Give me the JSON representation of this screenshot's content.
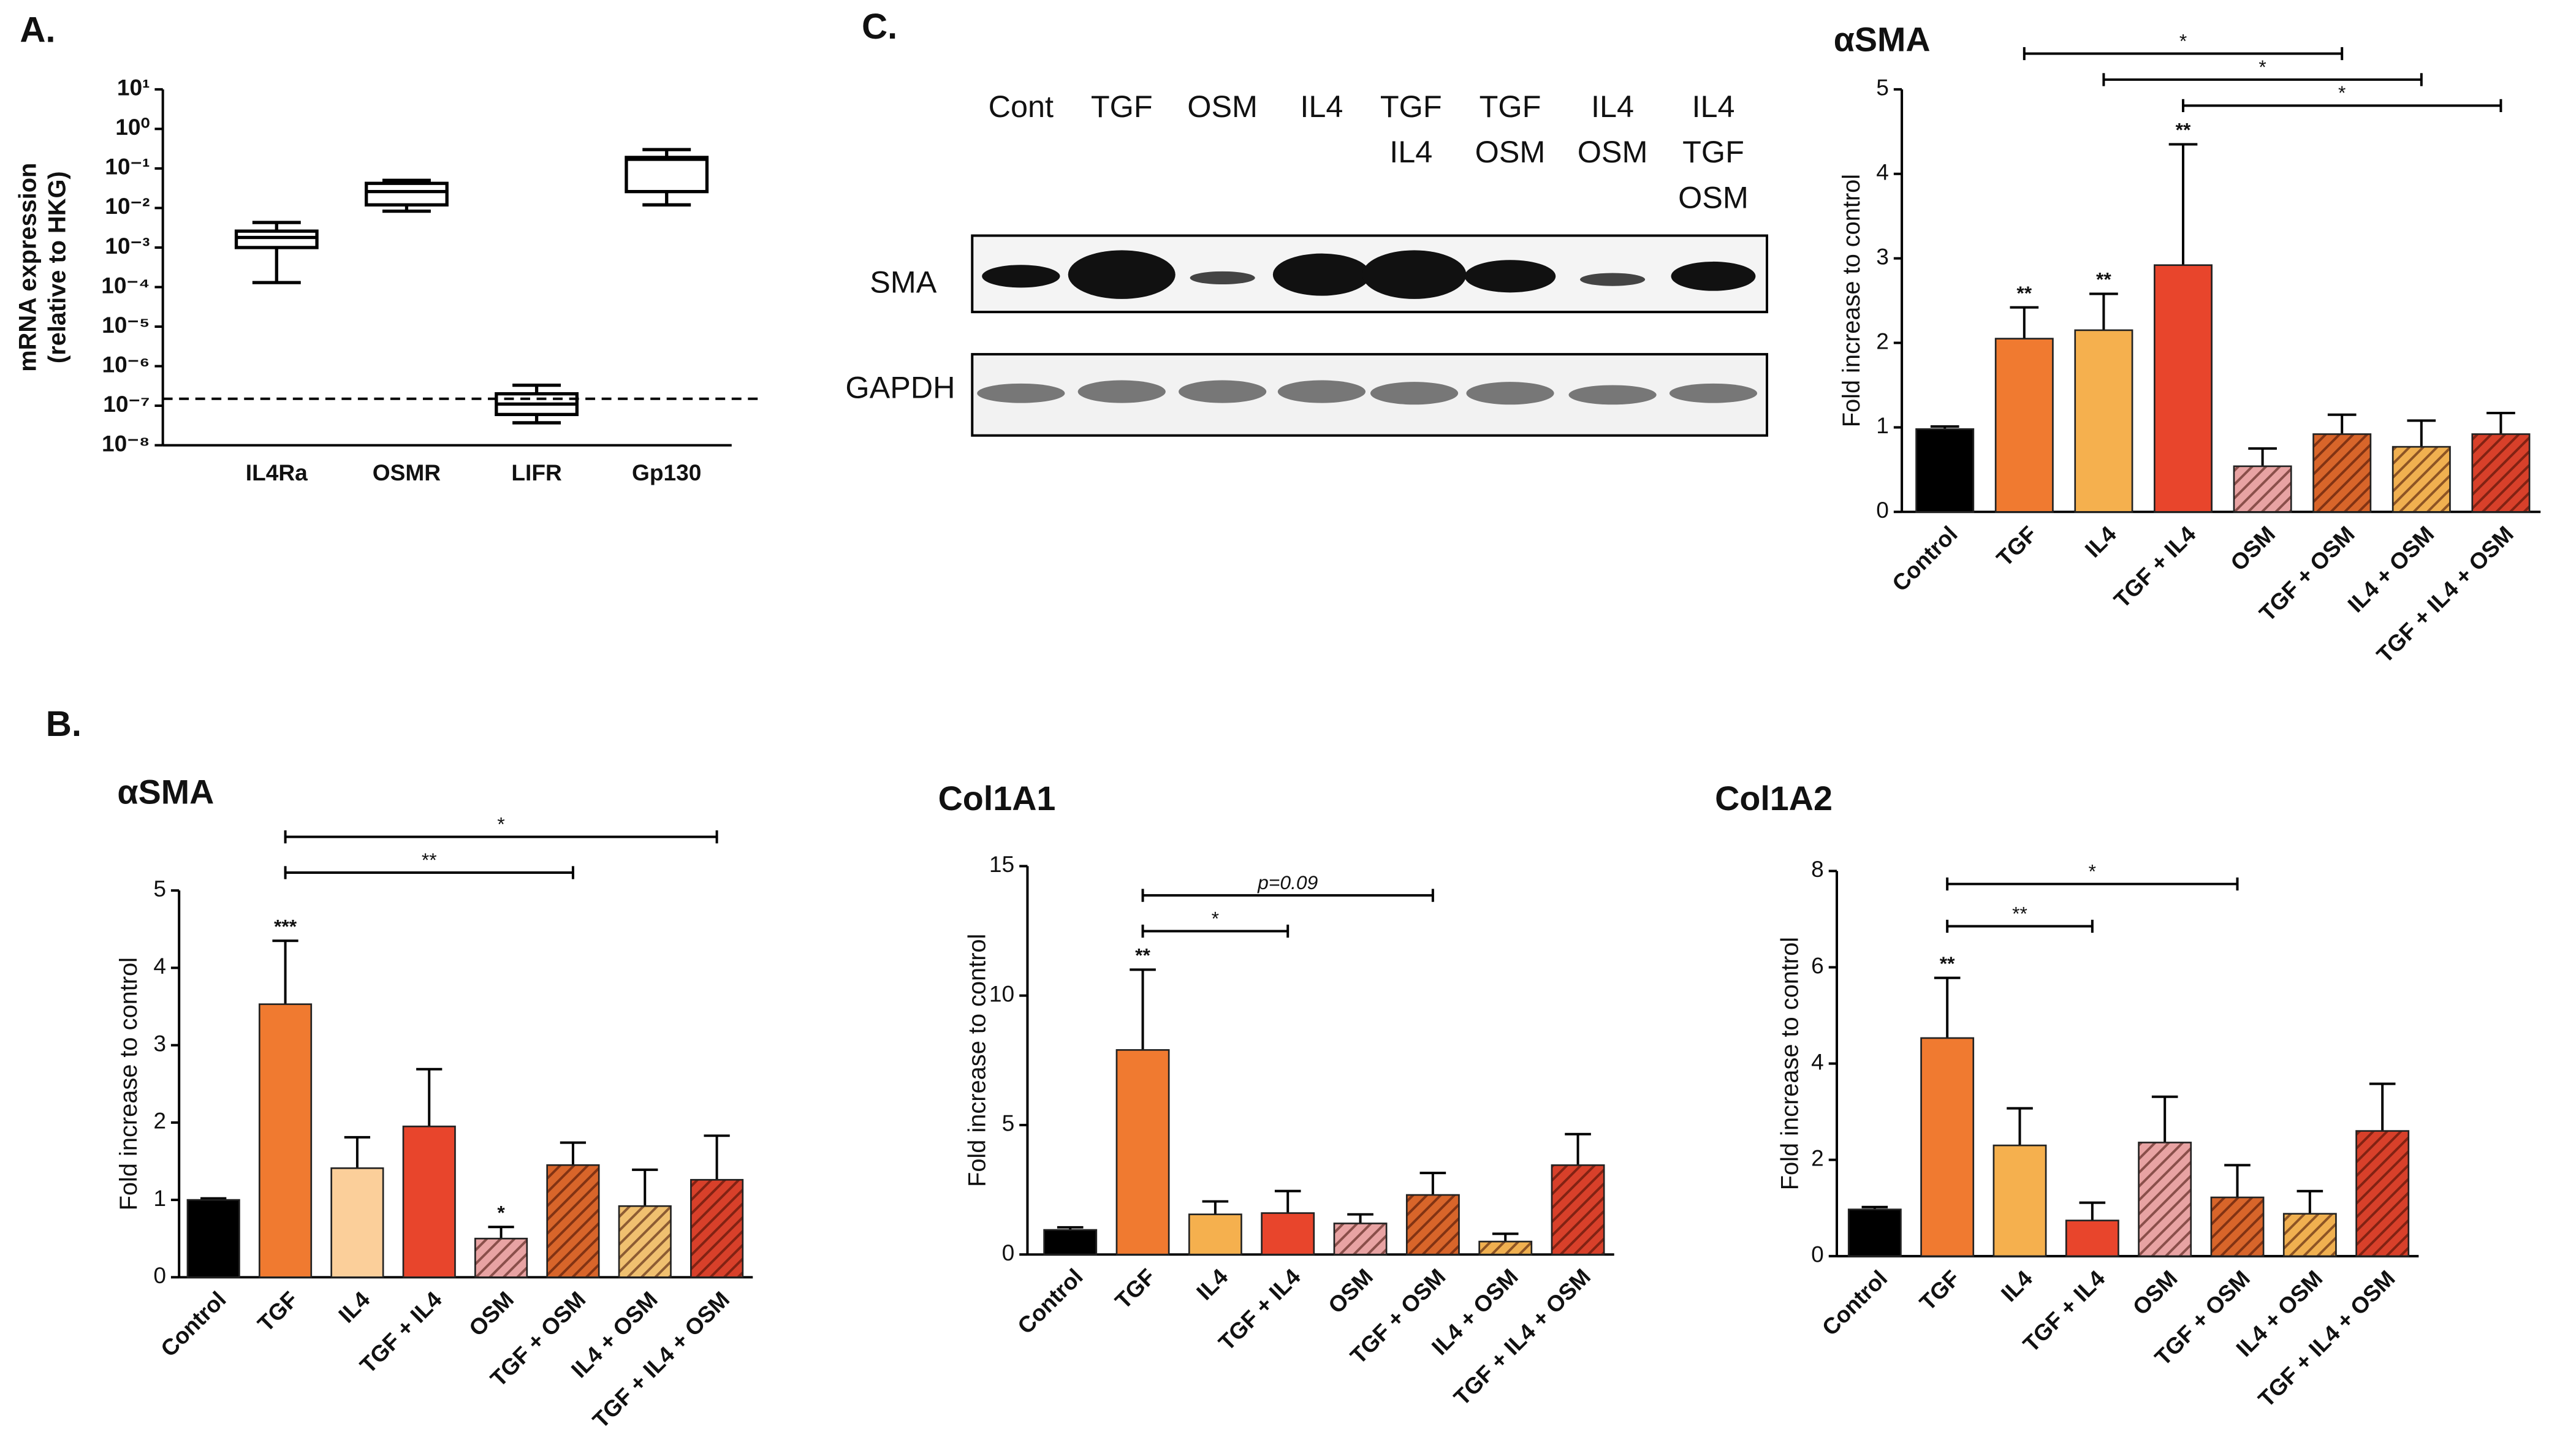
{
  "panel_labels": [
    "A.",
    "B.",
    "C."
  ],
  "blot": {
    "lanes": [
      [
        "Cont"
      ],
      [
        "TGF"
      ],
      [
        "OSM"
      ],
      [
        "IL4"
      ],
      [
        "TGF",
        "IL4"
      ],
      [
        "TGF",
        "OSM"
      ],
      [
        "IL4",
        "OSM"
      ],
      [
        "IL4",
        "TGF",
        "OSM"
      ]
    ],
    "rows": [
      "SMA",
      "GAPDH"
    ]
  },
  "chart_data": [
    {
      "type": "box",
      "ylabel": [
        "mRNA expression",
        "(relative to HKG)"
      ],
      "categories": [
        "IL4Ra",
        "OSMR",
        "LIFR",
        "Gp130"
      ],
      "boxes": [
        {
          "min": 0.00013,
          "q1": 0.001,
          "median": 0.0018,
          "q3": 0.0026,
          "max": 0.0043
        },
        {
          "min": 0.0083,
          "q1": 0.012,
          "median": 0.026,
          "q3": 0.042,
          "max": 0.05
        },
        {
          "min": 3.7e-08,
          "q1": 6e-08,
          "median": 1.1e-07,
          "q3": 2e-07,
          "max": 3.3e-07
        },
        {
          "min": 0.012,
          "q1": 0.026,
          "median": 0.17,
          "q3": 0.19,
          "max": 0.3
        }
      ],
      "log_scale": true,
      "ylim": [
        1e-08,
        10
      ],
      "yticks": [
        {
          "value": 10,
          "label": "10¹"
        },
        {
          "value": 1,
          "label": "10⁰"
        },
        {
          "value": 0.1,
          "label": "10⁻¹"
        },
        {
          "value": 0.01,
          "label": "10⁻²"
        },
        {
          "value": 0.001,
          "label": "10⁻³"
        },
        {
          "value": 0.0001,
          "label": "10⁻⁴"
        },
        {
          "value": 1e-05,
          "label": "10⁻⁵"
        },
        {
          "value": 1e-06,
          "label": "10⁻⁶"
        },
        {
          "value": 1e-07,
          "label": "10⁻⁷"
        },
        {
          "value": 1e-08,
          "label": "10⁻⁸"
        }
      ],
      "reference_line": 1.5e-07,
      "color": "#000000"
    },
    {
      "type": "bar",
      "title": "αSMA",
      "ylabel": "Fold increase to control",
      "categories": [
        "Control",
        "TGF",
        "IL4",
        "TGF + IL4",
        "OSM",
        "TGF + OSM",
        "IL4 + OSM",
        "TGF + IL4 + OSM"
      ],
      "values": [
        0.98,
        2.05,
        2.15,
        2.92,
        0.54,
        0.92,
        0.77,
        0.92
      ],
      "errors": [
        0.03,
        0.37,
        0.43,
        1.43,
        0.21,
        0.23,
        0.31,
        0.25
      ],
      "colors": [
        "#000000",
        "#f07a30",
        "#f5b04e",
        "#e8452c",
        "#e8a3a3",
        "#d8652a",
        "#f0b050",
        "#d8402a"
      ],
      "hatched": [
        false,
        false,
        false,
        false,
        true,
        true,
        true,
        true
      ],
      "sig_labels": [
        null,
        "**",
        "**",
        "**",
        null,
        null,
        null,
        null
      ],
      "comparisons": [
        {
          "pair": [
            "TGF",
            "TGF + OSM"
          ],
          "label": "*"
        },
        {
          "pair": [
            "IL4",
            "IL4 + OSM"
          ],
          "label": "*"
        },
        {
          "pair": [
            "TGF + IL4",
            "TGF + IL4 + OSM"
          ],
          "label": "*"
        }
      ],
      "ylim": [
        0,
        5
      ],
      "yticks": [
        0,
        1,
        2,
        3,
        4,
        5
      ]
    },
    {
      "type": "bar",
      "title": "αSMA",
      "ylabel": "Fold increase to control",
      "categories": [
        "Control",
        "TGF",
        "IL4",
        "TGF + IL4",
        "OSM",
        "TGF + OSM",
        "IL4 + OSM",
        "TGF + IL4 + OSM"
      ],
      "values": [
        1.0,
        3.53,
        1.41,
        1.95,
        0.5,
        1.45,
        0.92,
        1.26
      ],
      "errors": [
        0.02,
        0.82,
        0.4,
        0.74,
        0.15,
        0.29,
        0.47,
        0.57
      ],
      "colors": [
        "#000000",
        "#f07a30",
        "#fbcf9a",
        "#e8452c",
        "#e8a3a3",
        "#d8652a",
        "#f0c070",
        "#d8402a"
      ],
      "hatched": [
        false,
        false,
        false,
        false,
        true,
        true,
        true,
        true
      ],
      "sig_labels": [
        null,
        "***",
        null,
        null,
        "*",
        null,
        null,
        null
      ],
      "comparisons": [
        {
          "pair": [
            "TGF",
            "TGF + IL4 + OSM"
          ],
          "label": "*"
        },
        {
          "pair": [
            "TGF",
            "TGF + OSM"
          ],
          "label": "**"
        }
      ],
      "ylim": [
        0,
        5
      ],
      "yticks": [
        0,
        1,
        2,
        3,
        4,
        5
      ]
    },
    {
      "type": "bar",
      "title": "Col1A1",
      "ylabel": "Fold increase to control",
      "categories": [
        "Control",
        "TGF",
        "IL4",
        "TGF + IL4",
        "OSM",
        "TGF + OSM",
        "IL4 + OSM",
        "TGF + IL4 + OSM"
      ],
      "values": [
        0.95,
        7.9,
        1.55,
        1.6,
        1.2,
        2.3,
        0.5,
        3.45
      ],
      "errors": [
        0.1,
        3.1,
        0.5,
        0.85,
        0.35,
        0.85,
        0.3,
        1.2
      ],
      "colors": [
        "#000000",
        "#f07a30",
        "#f5b04e",
        "#e8452c",
        "#e8a3a3",
        "#d8652a",
        "#f0b050",
        "#d8402a"
      ],
      "hatched": [
        false,
        false,
        false,
        false,
        true,
        true,
        true,
        true
      ],
      "sig_labels": [
        null,
        "**",
        null,
        null,
        null,
        null,
        null,
        null
      ],
      "comparisons": [
        {
          "pair": [
            "TGF",
            "TGF + OSM"
          ],
          "label": "p=0.09"
        },
        {
          "pair": [
            "TGF",
            "TGF + IL4"
          ],
          "label": "*"
        }
      ],
      "ylim": [
        0,
        15
      ],
      "yticks": [
        0,
        5,
        10,
        15
      ]
    },
    {
      "type": "bar",
      "title": "Col1A2",
      "ylabel": "Fold increase to control",
      "categories": [
        "Control",
        "TGF",
        "IL4",
        "TGF + IL4",
        "OSM",
        "TGF + OSM",
        "IL4 + OSM",
        "TGF + IL4 + OSM"
      ],
      "values": [
        0.97,
        4.53,
        2.3,
        0.74,
        2.36,
        1.22,
        0.88,
        2.6
      ],
      "errors": [
        0.05,
        1.25,
        0.77,
        0.37,
        0.95,
        0.67,
        0.47,
        0.98
      ],
      "colors": [
        "#000000",
        "#f07a30",
        "#f5b04e",
        "#e8452c",
        "#e8a3a3",
        "#d8652a",
        "#f0b050",
        "#d8402a"
      ],
      "hatched": [
        false,
        false,
        false,
        false,
        true,
        true,
        true,
        true
      ],
      "sig_labels": [
        null,
        "**",
        null,
        null,
        null,
        null,
        null,
        null
      ],
      "comparisons": [
        {
          "pair": [
            "TGF",
            "TGF + OSM"
          ],
          "label": "*"
        },
        {
          "pair": [
            "TGF",
            "TGF + IL4"
          ],
          "label": "**"
        }
      ],
      "ylim": [
        0,
        8
      ],
      "yticks": [
        0,
        2,
        4,
        6,
        8
      ]
    }
  ]
}
